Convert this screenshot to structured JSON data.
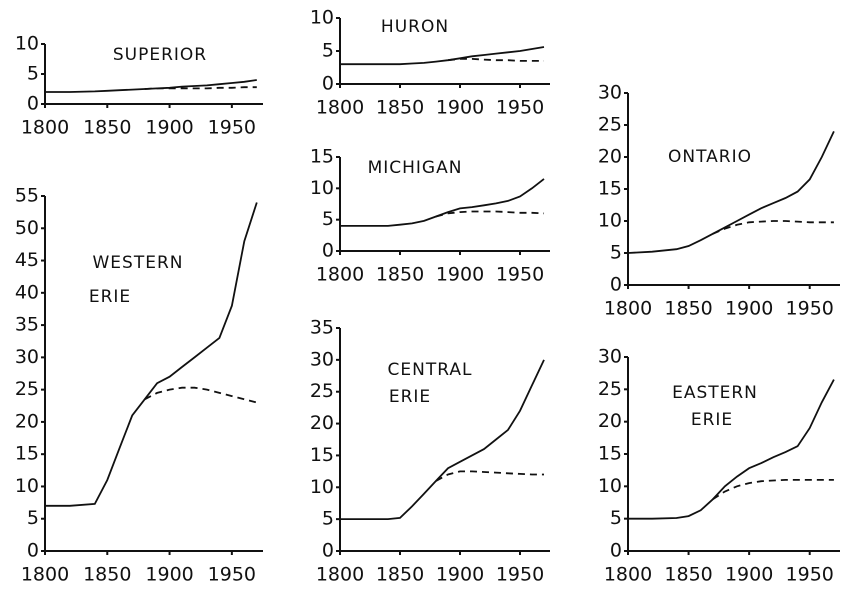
{
  "chart_data": [
    {
      "type": "line",
      "title": "SUPERIOR",
      "x": [
        1800,
        1820,
        1840,
        1850,
        1860,
        1870,
        1880,
        1890,
        1900,
        1910,
        1920,
        1930,
        1940,
        1950,
        1960,
        1970
      ],
      "series": [
        {
          "style": "solid",
          "values": [
            2,
            2,
            2.1,
            2.2,
            2.3,
            2.4,
            2.5,
            2.6,
            2.7,
            2.9,
            3,
            3.1,
            3.3,
            3.5,
            3.7,
            4
          ]
        },
        {
          "style": "dashed",
          "values": [
            null,
            null,
            null,
            null,
            null,
            null,
            2.5,
            2.6,
            2.6,
            2.6,
            2.6,
            2.6,
            2.7,
            2.7,
            2.8,
            2.8
          ]
        }
      ],
      "xlim": [
        1800,
        1975
      ],
      "xticks": [
        1800,
        1850,
        1900,
        1950
      ],
      "ylim": [
        0,
        10
      ],
      "yticks": [
        0,
        5,
        10
      ]
    },
    {
      "type": "line",
      "title": "HURON",
      "x": [
        1800,
        1820,
        1840,
        1850,
        1860,
        1870,
        1880,
        1890,
        1900,
        1910,
        1920,
        1930,
        1940,
        1950,
        1960,
        1970
      ],
      "series": [
        {
          "style": "solid",
          "values": [
            3,
            3,
            3,
            3,
            3.1,
            3.2,
            3.4,
            3.6,
            3.9,
            4.2,
            4.4,
            4.6,
            4.8,
            5,
            5.3,
            5.6
          ]
        },
        {
          "style": "dashed",
          "values": [
            null,
            null,
            null,
            null,
            null,
            null,
            null,
            3.6,
            3.8,
            3.8,
            3.7,
            3.6,
            3.6,
            3.5,
            3.5,
            3.5
          ]
        }
      ],
      "xlim": [
        1800,
        1975
      ],
      "xticks": [
        1800,
        1850,
        1900,
        1950
      ],
      "ylim": [
        0,
        10
      ],
      "yticks": [
        0,
        5,
        10
      ]
    },
    {
      "type": "line",
      "title": "MICHIGAN",
      "x": [
        1800,
        1820,
        1840,
        1850,
        1860,
        1870,
        1880,
        1890,
        1900,
        1910,
        1920,
        1930,
        1940,
        1950,
        1960,
        1970
      ],
      "series": [
        {
          "style": "solid",
          "values": [
            4,
            4,
            4,
            4.2,
            4.4,
            4.8,
            5.5,
            6.2,
            6.8,
            7,
            7.3,
            7.6,
            8,
            8.7,
            10,
            11.5
          ]
        },
        {
          "style": "dashed",
          "values": [
            null,
            null,
            null,
            null,
            null,
            null,
            5.5,
            6,
            6.2,
            6.3,
            6.3,
            6.3,
            6.2,
            6.1,
            6.1,
            6
          ]
        }
      ],
      "xlim": [
        1800,
        1975
      ],
      "xticks": [
        1800,
        1850,
        1900,
        1950
      ],
      "ylim": [
        0,
        15
      ],
      "yticks": [
        0,
        5,
        10,
        15
      ]
    },
    {
      "type": "line",
      "title": "ONTARIO",
      "x": [
        1800,
        1820,
        1840,
        1850,
        1860,
        1870,
        1880,
        1890,
        1900,
        1910,
        1920,
        1930,
        1940,
        1950,
        1960,
        1970
      ],
      "series": [
        {
          "style": "solid",
          "values": [
            5,
            5.2,
            5.6,
            6.1,
            7,
            8,
            9,
            10,
            11,
            12,
            12.8,
            13.6,
            14.6,
            16.5,
            20,
            24
          ]
        },
        {
          "style": "dashed",
          "values": [
            null,
            null,
            null,
            null,
            null,
            8,
            8.8,
            9.4,
            9.8,
            9.9,
            10,
            10,
            9.9,
            9.8,
            9.8,
            9.8
          ]
        }
      ],
      "xlim": [
        1800,
        1975
      ],
      "xticks": [
        1800,
        1850,
        1900,
        1950
      ],
      "ylim": [
        0,
        30
      ],
      "yticks": [
        0,
        5,
        10,
        15,
        20,
        25,
        30
      ]
    },
    {
      "type": "line",
      "title": [
        "WESTERN",
        "ERIE"
      ],
      "x": [
        1800,
        1820,
        1840,
        1850,
        1860,
        1870,
        1880,
        1890,
        1900,
        1910,
        1920,
        1930,
        1940,
        1950,
        1960,
        1970
      ],
      "series": [
        {
          "style": "solid",
          "values": [
            7,
            7,
            7.3,
            11,
            16,
            21,
            23.5,
            26,
            27,
            28.5,
            30,
            31.5,
            33,
            38,
            48,
            54
          ]
        },
        {
          "style": "dashed",
          "values": [
            null,
            null,
            null,
            null,
            null,
            null,
            23.5,
            24.5,
            25,
            25.3,
            25.3,
            25,
            24.5,
            24,
            23.5,
            23
          ]
        }
      ],
      "xlim": [
        1800,
        1975
      ],
      "xticks": [
        1800,
        1850,
        1900,
        1950
      ],
      "ylim": [
        0,
        55
      ],
      "yticks": [
        0,
        5,
        10,
        15,
        20,
        25,
        30,
        35,
        40,
        45,
        50,
        55
      ]
    },
    {
      "type": "line",
      "title": [
        "CENTRAL",
        "ERIE"
      ],
      "x": [
        1800,
        1820,
        1840,
        1850,
        1860,
        1870,
        1880,
        1890,
        1900,
        1910,
        1920,
        1930,
        1940,
        1950,
        1960,
        1970
      ],
      "series": [
        {
          "style": "solid",
          "values": [
            5,
            5,
            5,
            5.2,
            7,
            9,
            11,
            13,
            14,
            15,
            16,
            17.5,
            19,
            22,
            26,
            30
          ]
        },
        {
          "style": "dashed",
          "values": [
            null,
            null,
            null,
            null,
            null,
            null,
            11,
            12,
            12.5,
            12.5,
            12.4,
            12.3,
            12.2,
            12.1,
            12,
            12
          ]
        }
      ],
      "xlim": [
        1800,
        1975
      ],
      "xticks": [
        1800,
        1850,
        1900,
        1950
      ],
      "ylim": [
        0,
        35
      ],
      "yticks": [
        0,
        5,
        10,
        15,
        20,
        25,
        30,
        35
      ]
    },
    {
      "type": "line",
      "title": [
        "EASTERN",
        "ERIE"
      ],
      "x": [
        1800,
        1820,
        1840,
        1850,
        1860,
        1870,
        1880,
        1890,
        1900,
        1910,
        1920,
        1930,
        1940,
        1950,
        1960,
        1970
      ],
      "series": [
        {
          "style": "solid",
          "values": [
            5,
            5,
            5.1,
            5.4,
            6.3,
            8,
            10,
            11.5,
            12.8,
            13.6,
            14.5,
            15.3,
            16.2,
            19,
            23,
            26.5
          ]
        },
        {
          "style": "dashed",
          "values": [
            null,
            null,
            null,
            null,
            null,
            8,
            9.2,
            10,
            10.5,
            10.8,
            10.9,
            11,
            11,
            11,
            11,
            11
          ]
        }
      ],
      "xlim": [
        1800,
        1975
      ],
      "xticks": [
        1800,
        1850,
        1900,
        1950
      ],
      "ylim": [
        0,
        30
      ],
      "yticks": [
        0,
        5,
        10,
        15,
        20,
        25,
        30
      ]
    }
  ]
}
